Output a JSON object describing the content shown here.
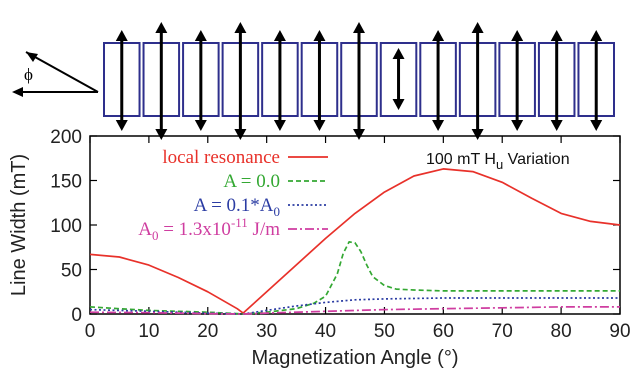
{
  "figure": {
    "phi_symbol": "ϕ",
    "element_count": 13
  },
  "chart_data": {
    "type": "line",
    "xlabel": "Magnetization Angle (°)",
    "ylabel": "Line Width (mT)",
    "xlim": [
      0,
      90
    ],
    "ylim": [
      0,
      200
    ],
    "xticks": [
      "0",
      "10",
      "20",
      "30",
      "40",
      "50",
      "60",
      "70",
      "80",
      "90"
    ],
    "yticks": [
      "0",
      "50",
      "100",
      "150",
      "200"
    ],
    "grid": false,
    "legend_position": "top-left",
    "annotation": {
      "text": "100 mT H",
      "sub": "u",
      "tail": " Variation"
    },
    "series": [
      {
        "name": "local resonance",
        "color": "#e8312a",
        "dash": "solid",
        "x": [
          0,
          5,
          10,
          15,
          20,
          25,
          26,
          30,
          35,
          40,
          45,
          50,
          55,
          60,
          65,
          70,
          75,
          80,
          85,
          90
        ],
        "y": [
          67,
          64,
          55,
          41,
          25,
          6,
          1,
          25,
          55,
          85,
          113,
          137,
          155,
          163,
          160,
          148,
          130,
          113,
          104,
          100
        ]
      },
      {
        "name": "A = 0.0",
        "color": "#34a833",
        "dash": "dashed",
        "x": [
          0,
          5,
          10,
          15,
          20,
          25,
          26,
          30,
          35,
          38,
          40,
          42,
          43,
          44,
          45,
          46,
          47,
          48,
          50,
          52,
          55,
          60,
          65,
          70,
          75,
          80,
          85,
          90
        ],
        "y": [
          8,
          6,
          4,
          3,
          2,
          0.5,
          0,
          2,
          6,
          12,
          20,
          45,
          68,
          81,
          80,
          70,
          55,
          42,
          32,
          28,
          27,
          26,
          26,
          26,
          26,
          26,
          26,
          26
        ]
      },
      {
        "name": "A = 0.1*A",
        "name_sub": "0",
        "color": "#2b3ca3",
        "dash": "dotted",
        "x": [
          0,
          10,
          20,
          26,
          30,
          35,
          40,
          45,
          50,
          60,
          70,
          80,
          90
        ],
        "y": [
          5,
          3,
          1,
          0,
          4,
          9,
          13,
          16,
          17,
          18,
          18,
          18,
          18
        ]
      },
      {
        "name": "A",
        "name_sub": "0",
        "name_tail": " = 1.3x10",
        "name_sup": "-11",
        "name_end": " J/m",
        "color": "#cf3da0",
        "dash": "dashdot",
        "x": [
          0,
          10,
          20,
          26,
          30,
          40,
          50,
          60,
          70,
          80,
          90
        ],
        "y": [
          2,
          1.5,
          0.5,
          0,
          1,
          3,
          5,
          6,
          7,
          8,
          8
        ]
      }
    ]
  }
}
